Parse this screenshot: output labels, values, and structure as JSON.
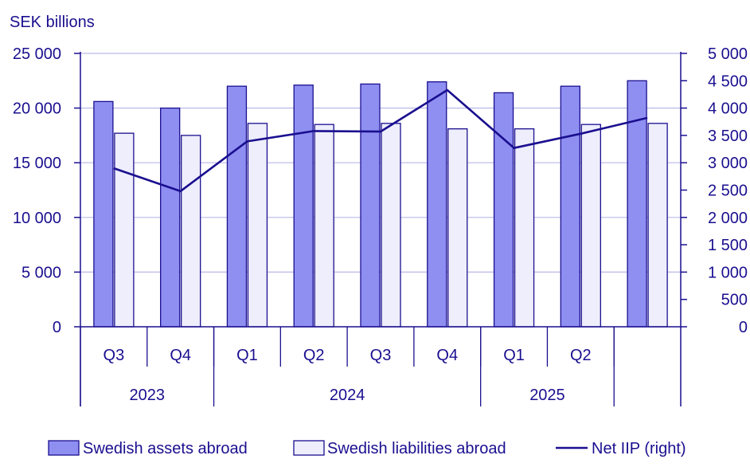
{
  "colors": {
    "axis": "#1a0f8f",
    "assets_fill": "#8f8ff2",
    "liabilities_fill": "#eeeefc",
    "line": "#1a0f8f",
    "grid": "#b9b9e8"
  },
  "chart_data": {
    "type": "bar",
    "ylabel": "SEK billions",
    "ylim_left": [
      0,
      25000
    ],
    "ylim_right": [
      0,
      5000
    ],
    "yticks_left": [
      "0",
      "5 000",
      "10 000",
      "15 000",
      "20 000",
      "25 000"
    ],
    "yticks_right": [
      "0",
      "500",
      "1 000",
      "1 500",
      "2 000",
      "2 500",
      "3 000",
      "3 500",
      "4 000",
      "4 500",
      "5 000"
    ],
    "categories": [
      "Q3",
      "Q4",
      "Q1",
      "Q2",
      "Q3",
      "Q4",
      "Q1",
      "Q2",
      ""
    ],
    "years": [
      {
        "label": "2023",
        "start": 0,
        "span": 2
      },
      {
        "label": "2024",
        "start": 2,
        "span": 4
      },
      {
        "label": "2025",
        "start": 6,
        "span": 2
      },
      {
        "label": "",
        "start": 8,
        "span": 1
      }
    ],
    "grid": true,
    "legend_position": "bottom",
    "series": [
      {
        "name": "Swedish assets abroad",
        "type": "bar",
        "axis": "left",
        "values": [
          20600,
          20000,
          22000,
          22100,
          22200,
          22400,
          21400,
          22000,
          22500
        ]
      },
      {
        "name": "Swedish liabilities abroad",
        "type": "bar",
        "axis": "left",
        "values": [
          17700,
          17500,
          18600,
          18500,
          18600,
          18100,
          18100,
          18500,
          18600
        ]
      },
      {
        "name": "Net IIP (right)",
        "type": "line",
        "axis": "right",
        "values": [
          2900,
          2480,
          3390,
          3580,
          3570,
          4330,
          3270,
          3530,
          3820
        ]
      }
    ]
  }
}
